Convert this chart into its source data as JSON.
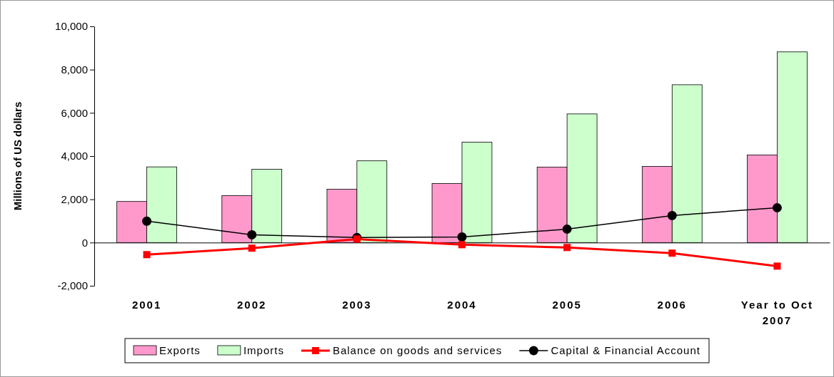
{
  "chart_data": {
    "type": "bar",
    "ylabel": "Millions of US dollars",
    "categories": [
      "2001",
      "2002",
      "2003",
      "2004",
      "2005",
      "2006",
      "Year to Oct 2007"
    ],
    "ylim": [
      -2000,
      10000
    ],
    "yticks": [
      {
        "value": -2000,
        "label": "-2,000"
      },
      {
        "value": 0,
        "label": "0"
      },
      {
        "value": 2000,
        "label": "2,000"
      },
      {
        "value": 4000,
        "label": "4,000"
      },
      {
        "value": 6000,
        "label": "6,000"
      },
      {
        "value": 8000,
        "label": "8,000"
      },
      {
        "value": 10000,
        "label": "10,000"
      }
    ],
    "legend": "bottom",
    "series": [
      {
        "name": "Exports",
        "color": "#ff99cc",
        "values": [
          1900,
          2170,
          2470,
          2730,
          3490,
          3520,
          4050
        ]
      },
      {
        "name": "Imports",
        "color": "#ccffcc",
        "values": [
          3500,
          3390,
          3780,
          4640,
          5950,
          7300,
          8820
        ]
      },
      {
        "name": "Balance on goods and services",
        "type": "line",
        "color": "#ff0000",
        "marker": "square",
        "values": [
          -560,
          -260,
          160,
          -100,
          -230,
          -490,
          -1090
        ]
      },
      {
        "name": "Capital & Financial Account",
        "type": "line",
        "color": "#000000",
        "marker": "circle",
        "values": [
          990,
          360,
          230,
          260,
          620,
          1250,
          1610
        ]
      }
    ]
  }
}
